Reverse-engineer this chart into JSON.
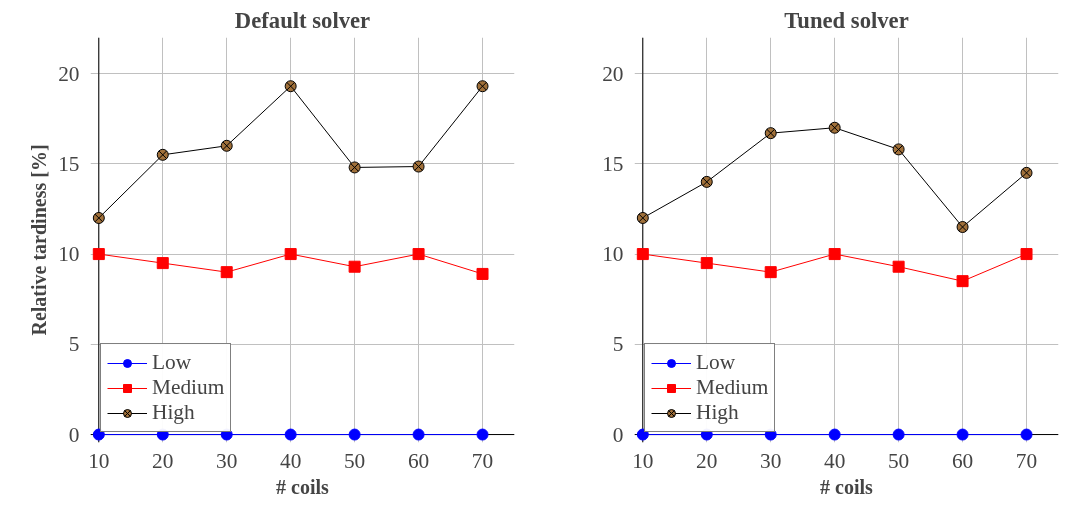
{
  "chart_data": [
    {
      "type": "line",
      "title": "Default solver",
      "xlabel": "# coils",
      "ylabel": "Relative tardiness [%]",
      "x": [
        10,
        20,
        30,
        40,
        50,
        60,
        70
      ],
      "xlim": [
        10,
        75
      ],
      "ylim": [
        0,
        22
      ],
      "xticks": [
        10,
        20,
        30,
        40,
        50,
        60,
        70
      ],
      "yticks": [
        0,
        5,
        10,
        15,
        20
      ],
      "grid": true,
      "legend": "bottom left",
      "series": [
        {
          "name": "Low",
          "color": "#0000ff",
          "marker": "circle",
          "values": [
            0,
            0,
            0,
            0,
            0,
            0,
            0
          ]
        },
        {
          "name": "Medium",
          "color": "#ff0000",
          "marker": "square",
          "values": [
            10,
            9.5,
            9,
            10,
            9.3,
            10,
            8.9
          ]
        },
        {
          "name": "High",
          "color": "#000000",
          "marker": "cross",
          "values": [
            12,
            15.5,
            16,
            19.3,
            14.8,
            14.85,
            19.3
          ]
        }
      ]
    },
    {
      "type": "line",
      "title": "Tuned solver",
      "xlabel": "# coils",
      "x": [
        10,
        20,
        30,
        40,
        50,
        60,
        70
      ],
      "xlim": [
        10,
        75
      ],
      "ylim": [
        0,
        22
      ],
      "xticks": [
        10,
        20,
        30,
        40,
        50,
        60,
        70
      ],
      "yticks": [
        0,
        5,
        10,
        15,
        20
      ],
      "grid": true,
      "legend": "bottom left",
      "series": [
        {
          "name": "Low",
          "color": "#0000ff",
          "marker": "circle",
          "values": [
            0,
            0,
            0,
            0,
            0,
            0,
            0
          ]
        },
        {
          "name": "Medium",
          "color": "#ff0000",
          "marker": "square",
          "values": [
            10,
            9.5,
            9,
            10,
            9.3,
            8.5,
            10
          ]
        },
        {
          "name": "High",
          "color": "#000000",
          "marker": "cross",
          "values": [
            12,
            14,
            16.7,
            17,
            15.8,
            11.5,
            14.5
          ]
        }
      ]
    }
  ]
}
